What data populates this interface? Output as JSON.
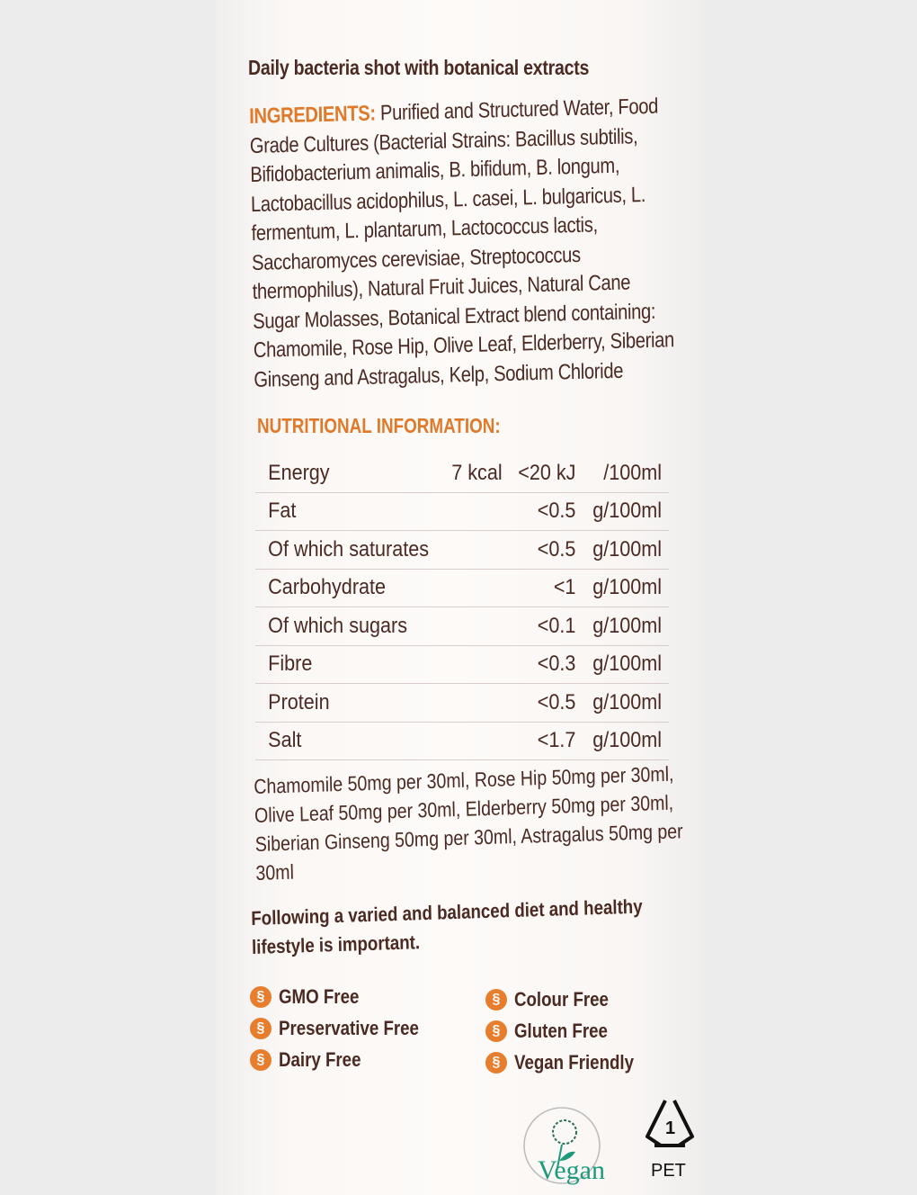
{
  "title": "Daily bacteria shot with botanical extracts",
  "ingredients": {
    "label": "INGREDIENTS:",
    "text": "Purified and Structured Water, Food Grade Cultures (Bacterial Strains: Bacillus subtilis, Bifidobacterium animalis, B. bifidum, B. longum, Lactobacillus acidophilus, L. casei, L. bulgaricus, L. fermentum, L. plantarum, Lactococcus lactis, Saccharomyces cerevisiae, Streptococcus thermophilus), Natural Fruit Juices, Natural Cane Sugar Molasses, Botanical Extract blend containing: Chamomile, Rose Hip, Olive Leaf, Elderberry, Siberian Ginseng and Astragalus, Kelp, Sodium Chloride"
  },
  "nutrition": {
    "heading": "NUTRITIONAL INFORMATION:",
    "rows": [
      {
        "name": "Energy",
        "kcal": "7 kcal",
        "value": "<20 kJ",
        "unit": "/100ml"
      },
      {
        "name": "Fat",
        "kcal": "",
        "value": "<0.5",
        "unit": "g/100ml"
      },
      {
        "name": "Of which saturates",
        "kcal": "",
        "value": "<0.5",
        "unit": "g/100ml"
      },
      {
        "name": "Carbohydrate",
        "kcal": "",
        "value": "<1",
        "unit": "g/100ml"
      },
      {
        "name": "Of which sugars",
        "kcal": "",
        "value": "<0.1",
        "unit": "g/100ml"
      },
      {
        "name": "Fibre",
        "kcal": "",
        "value": "<0.3",
        "unit": "g/100ml"
      },
      {
        "name": "Protein",
        "kcal": "",
        "value": "<0.5",
        "unit": "g/100ml"
      },
      {
        "name": "Salt",
        "kcal": "",
        "value": "<1.7",
        "unit": "g/100ml"
      }
    ]
  },
  "botanicals": "Chamomile 50mg per 30ml, Rose Hip 50mg per 30ml, Olive Leaf 50mg per 30ml, Elderberry 50mg per 30ml, Siberian Ginseng 50mg per 30ml, Astragalus 50mg per 30ml",
  "footer": "Following a varied and balanced diet and healthy lifestyle is important.",
  "claims": [
    "GMO Free",
    "Preservative Free",
    "Dairy Free",
    "Colour Free",
    "Gluten Free",
    "Vegan Friendly"
  ],
  "logos": {
    "vegan": "Vegan",
    "recycle_number": "1",
    "recycle_label": "PET"
  },
  "colors": {
    "text": "#4a2a22",
    "accent": "#e07a2a",
    "vegan_green": "#1d9a7a"
  }
}
